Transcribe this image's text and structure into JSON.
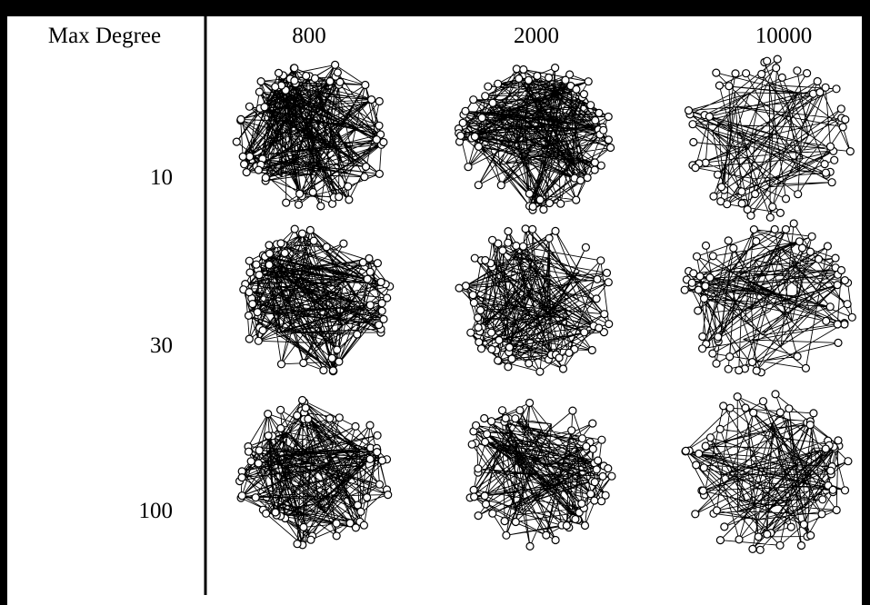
{
  "header": {
    "corner": "Max Degree",
    "columns": [
      "800",
      "2000",
      "10000"
    ]
  },
  "rows": [
    "10",
    "30",
    "100"
  ]
}
